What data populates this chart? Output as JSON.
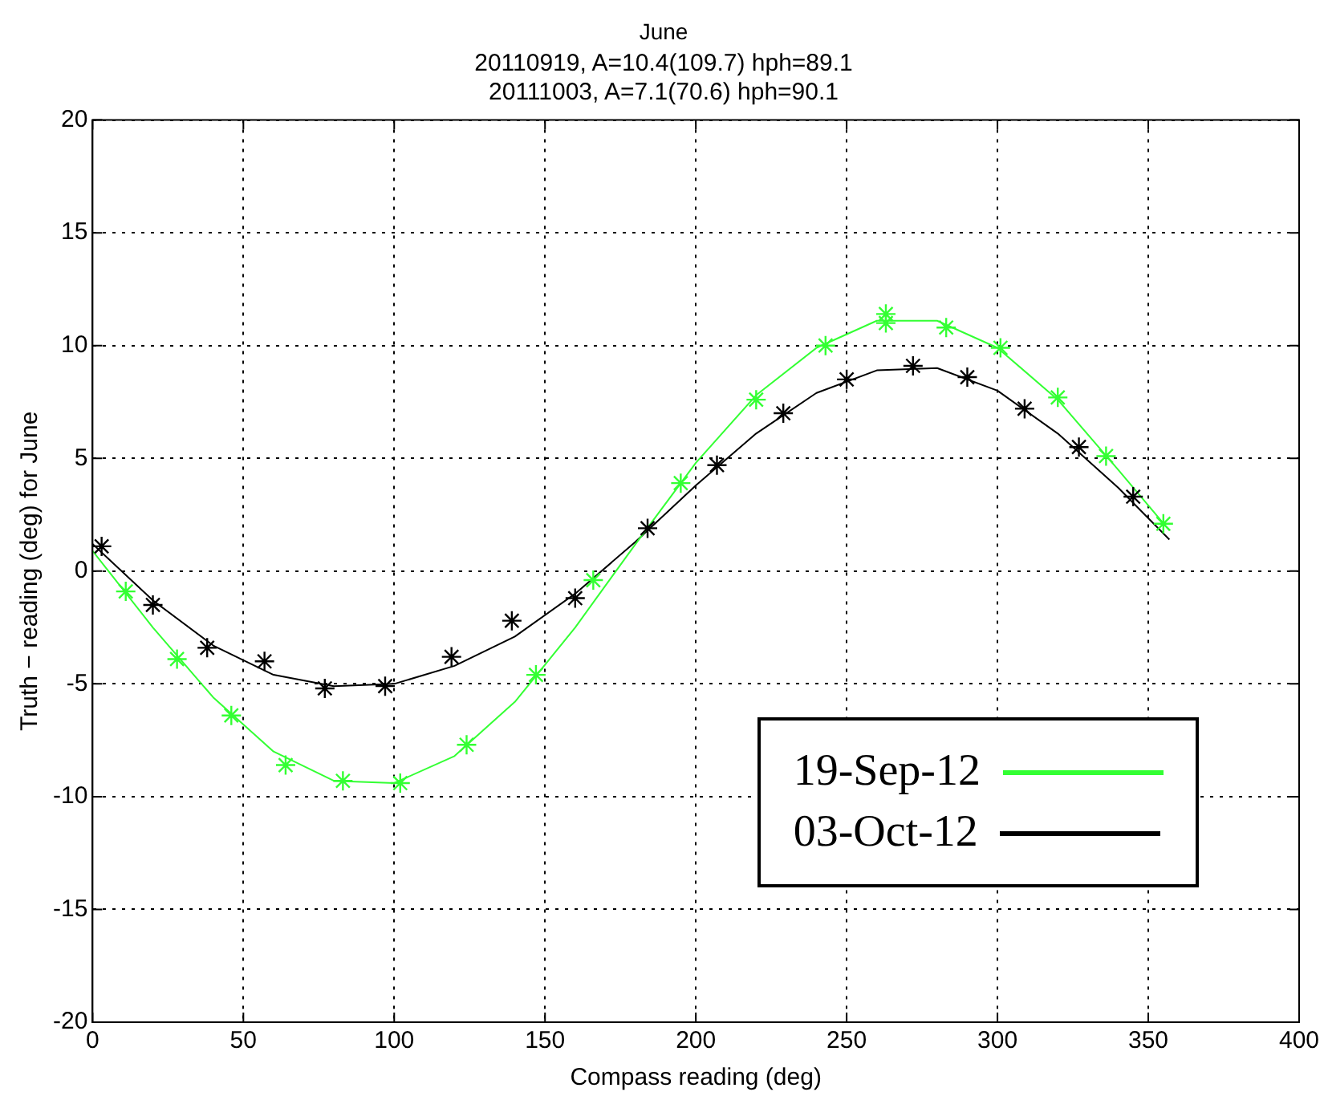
{
  "chart_data": {
    "type": "scatter",
    "title": "June",
    "subtitle": "20110919, A=10.4(109.7) hph=89.1\n20111003, A=7.1(70.6) hph=90.1",
    "xlabel": "Compass reading (deg)",
    "ylabel": "Truth − reading (deg) for June",
    "xlim": [
      0,
      400
    ],
    "xticks": [
      0,
      50,
      100,
      150,
      200,
      250,
      300,
      350,
      400
    ],
    "ylim": [
      -20,
      20
    ],
    "yticks": [
      -20,
      -15,
      -10,
      -5,
      0,
      5,
      10,
      15,
      20
    ],
    "grid": true,
    "legend": "bottom right",
    "series": [
      {
        "type": "scatter",
        "marker": "cross",
        "color": "#33ff33",
        "x": [
          11,
          28,
          46,
          64,
          83,
          102,
          124,
          147,
          166,
          195,
          220,
          243,
          263,
          263,
          283,
          301,
          320,
          336,
          355
        ],
        "values": [
          -0.9,
          -3.9,
          -6.4,
          -8.6,
          -9.3,
          -9.4,
          -7.7,
          -4.6,
          -0.4,
          3.9,
          7.6,
          10.0,
          11.4,
          11.0,
          10.8,
          9.9,
          7.7,
          5.1,
          2.1
        ]
      },
      {
        "type": "scatter",
        "marker": "cross",
        "color": "#000000",
        "x": [
          3,
          20,
          38,
          57,
          77,
          97,
          119,
          139,
          160,
          184,
          207,
          229,
          250,
          272,
          290,
          309,
          327,
          345
        ],
        "values": [
          1.1,
          -1.5,
          -3.4,
          -4.0,
          -5.2,
          -5.1,
          -3.8,
          -2.2,
          -1.2,
          1.9,
          4.7,
          7.0,
          8.5,
          9.1,
          8.6,
          7.2,
          5.5,
          3.3
        ]
      },
      {
        "type": "line",
        "name": "19-Sep-12",
        "marker": "none",
        "color": "#33ff33",
        "x": [
          0,
          20,
          40,
          60,
          80,
          100,
          120,
          140,
          160,
          180,
          200,
          220,
          240,
          260,
          280,
          300,
          320,
          340,
          357
        ],
        "values": [
          0.9,
          -2.5,
          -5.6,
          -8.0,
          -9.3,
          -9.4,
          -8.2,
          -5.8,
          -2.5,
          1.2,
          4.8,
          7.8,
          9.9,
          11.1,
          11.1,
          9.9,
          7.6,
          4.5,
          1.8
        ]
      },
      {
        "type": "line",
        "name": "03-Oct-12",
        "marker": "none",
        "color": "#000000",
        "x": [
          0,
          20,
          40,
          60,
          80,
          100,
          120,
          140,
          160,
          180,
          200,
          220,
          240,
          260,
          280,
          300,
          320,
          340,
          357
        ],
        "values": [
          1.2,
          -1.3,
          -3.3,
          -4.6,
          -5.1,
          -5.0,
          -4.2,
          -2.9,
          -1.0,
          1.3,
          3.8,
          6.1,
          7.9,
          8.9,
          9.0,
          8.0,
          6.1,
          3.7,
          1.4
        ]
      }
    ]
  }
}
